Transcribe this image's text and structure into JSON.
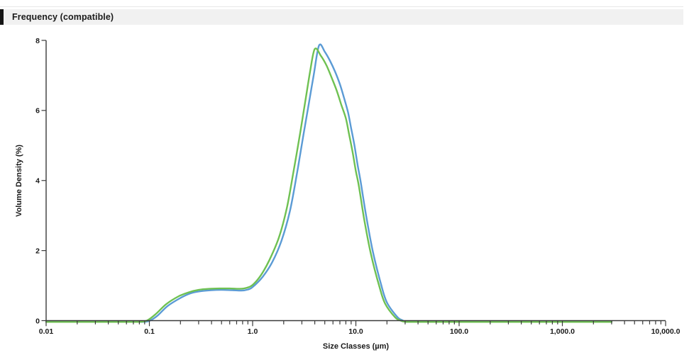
{
  "header": {
    "title": "Frequency (compatible)"
  },
  "chart_data": {
    "type": "line",
    "title": "Frequency (compatible)",
    "xlabel": "Size Classes (µm)",
    "ylabel": "Volume Density (%)",
    "x_scale": "log",
    "xlim": [
      0.01,
      10000
    ],
    "ylim": [
      0,
      8
    ],
    "grid": false,
    "legend": "none",
    "x_ticks": {
      "values": [
        0.01,
        0.1,
        1,
        10,
        100,
        1000,
        10000
      ],
      "labels": [
        "0.01",
        "0.1",
        "1.0",
        "10.0",
        "100.0",
        "1,000.0",
        "10,000.0"
      ]
    },
    "y_ticks": {
      "values": [
        0,
        2,
        4,
        6,
        8
      ],
      "labels": [
        "0",
        "2",
        "4",
        "6",
        "8"
      ]
    },
    "axis_color": "#3a3a3a",
    "series": [
      {
        "name": "blue-curve",
        "color": "#5B9BD5",
        "points": [
          [
            0.01,
            0
          ],
          [
            0.03,
            0
          ],
          [
            0.06,
            0
          ],
          [
            0.085,
            0
          ],
          [
            0.1,
            0.03
          ],
          [
            0.12,
            0.18
          ],
          [
            0.15,
            0.45
          ],
          [
            0.2,
            0.68
          ],
          [
            0.25,
            0.81
          ],
          [
            0.31,
            0.87
          ],
          [
            0.4,
            0.9
          ],
          [
            0.5,
            0.91
          ],
          [
            0.63,
            0.9
          ],
          [
            0.78,
            0.89
          ],
          [
            0.9,
            0.92
          ],
          [
            1.0,
            0.99
          ],
          [
            1.25,
            1.28
          ],
          [
            1.55,
            1.7
          ],
          [
            1.9,
            2.3
          ],
          [
            2.3,
            3.15
          ],
          [
            2.7,
            4.25
          ],
          [
            3.1,
            5.3
          ],
          [
            3.5,
            6.2
          ],
          [
            3.9,
            7.0
          ],
          [
            4.4,
            7.85
          ],
          [
            5.0,
            7.67
          ],
          [
            5.6,
            7.42
          ],
          [
            6.3,
            7.1
          ],
          [
            7.0,
            6.75
          ],
          [
            7.7,
            6.35
          ],
          [
            8.4,
            5.95
          ],
          [
            9.0,
            5.5
          ],
          [
            9.7,
            5.0
          ],
          [
            10.4,
            4.45
          ],
          [
            11.1,
            4.0
          ],
          [
            12.6,
            3.0
          ],
          [
            14.6,
            2.0
          ],
          [
            17.6,
            1.05
          ],
          [
            20.0,
            0.55
          ],
          [
            25.0,
            0.15
          ],
          [
            28.0,
            0.05
          ],
          [
            30.0,
            0.01
          ],
          [
            33.0,
            0
          ],
          [
            42.0,
            0
          ],
          [
            100.0,
            0
          ],
          [
            400.0,
            0
          ],
          [
            1000.0,
            0
          ],
          [
            3000.0,
            0
          ]
        ]
      },
      {
        "name": "green-curve",
        "color": "#6FC152",
        "points": [
          [
            0.01,
            0
          ],
          [
            0.03,
            0
          ],
          [
            0.06,
            0
          ],
          [
            0.08,
            0
          ],
          [
            0.095,
            0.04
          ],
          [
            0.115,
            0.22
          ],
          [
            0.145,
            0.5
          ],
          [
            0.19,
            0.72
          ],
          [
            0.24,
            0.84
          ],
          [
            0.3,
            0.91
          ],
          [
            0.38,
            0.94
          ],
          [
            0.48,
            0.95
          ],
          [
            0.6,
            0.95
          ],
          [
            0.75,
            0.94
          ],
          [
            0.88,
            0.97
          ],
          [
            1.0,
            1.05
          ],
          [
            1.2,
            1.32
          ],
          [
            1.45,
            1.75
          ],
          [
            1.8,
            2.4
          ],
          [
            2.15,
            3.25
          ],
          [
            2.5,
            4.3
          ],
          [
            2.9,
            5.4
          ],
          [
            3.25,
            6.3
          ],
          [
            3.6,
            7.1
          ],
          [
            4.0,
            7.75
          ],
          [
            4.6,
            7.55
          ],
          [
            5.2,
            7.28
          ],
          [
            5.8,
            6.95
          ],
          [
            6.5,
            6.58
          ],
          [
            7.2,
            6.18
          ],
          [
            8.0,
            5.78
          ],
          [
            8.6,
            5.32
          ],
          [
            9.3,
            4.82
          ],
          [
            10.0,
            4.28
          ],
          [
            10.7,
            3.85
          ],
          [
            12.1,
            2.88
          ],
          [
            14.0,
            1.92
          ],
          [
            16.9,
            1.0
          ],
          [
            19.2,
            0.52
          ],
          [
            24.0,
            0.13
          ],
          [
            27.0,
            0.04
          ],
          [
            29.0,
            0.01
          ],
          [
            32.0,
            0
          ],
          [
            40.0,
            0
          ],
          [
            100.0,
            0
          ],
          [
            400.0,
            0
          ],
          [
            1000.0,
            0
          ],
          [
            3000.0,
            0
          ]
        ]
      }
    ]
  }
}
